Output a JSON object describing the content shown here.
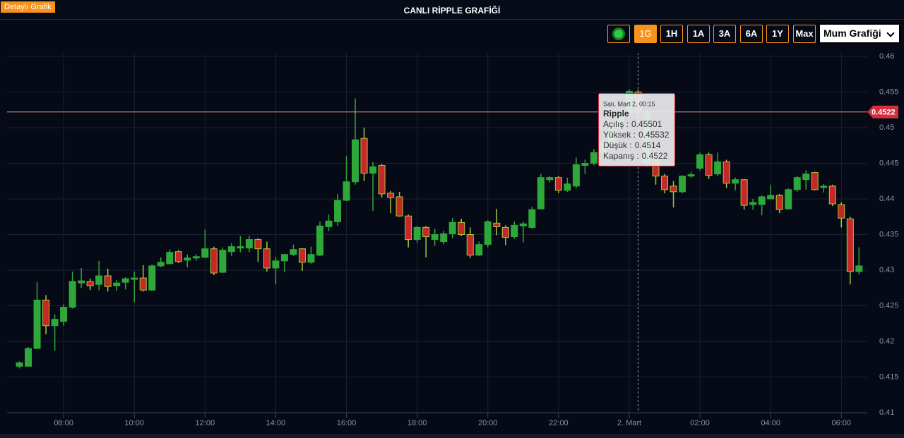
{
  "header": {
    "badge": "Detaylı Grafik",
    "title": "CANLI RİPPLE GRAFİĞİ"
  },
  "controls": {
    "ranges": [
      "1G",
      "1H",
      "1A",
      "3A",
      "6A",
      "1Y",
      "Max"
    ],
    "active": "1G",
    "chart_type": "Mum Grafiği"
  },
  "chart_data": {
    "type": "candlestick",
    "x": [
      405,
      420,
      435,
      450,
      465,
      480,
      495,
      510,
      525,
      540,
      555,
      570,
      585,
      600,
      615,
      630,
      645,
      660,
      675,
      690,
      705,
      720,
      735,
      750,
      765,
      780,
      795,
      810,
      825,
      840,
      855,
      870,
      885,
      900,
      915,
      930,
      945,
      960,
      975,
      990,
      1005,
      1020,
      1035,
      1050,
      1065,
      1080,
      1095,
      1110,
      1125,
      1140,
      1155,
      1170,
      1185,
      1200,
      1215,
      1230,
      1245,
      1260,
      1275,
      1290,
      1305,
      1320,
      1335,
      1350,
      1365,
      1380,
      1395,
      1410,
      1425,
      1440,
      1455,
      1470,
      1485,
      1500,
      1515,
      1530,
      1545,
      1560,
      1575,
      1590,
      1605,
      1620,
      1635,
      1650,
      1665,
      1680,
      1695,
      1710,
      1725,
      1740,
      1755,
      1770,
      1785,
      1800,
      1815,
      1830
    ],
    "series": [
      {
        "name": "Ripple",
        "up_color": "#2fa83a",
        "down_color": "#c62828",
        "down_border": "#a6c93a",
        "open": [
          0.4165,
          0.4165,
          0.419,
          0.4258,
          0.4222,
          0.4228,
          0.4248,
          0.4282,
          0.4284,
          0.428,
          0.4292,
          0.4278,
          0.4283,
          0.4287,
          0.4289,
          0.4272,
          0.4306,
          0.4309,
          0.4326,
          0.4314,
          0.4317,
          0.4318,
          0.433,
          0.4297,
          0.4326,
          0.4331,
          0.4331,
          0.4343,
          0.433,
          0.4303,
          0.4313,
          0.4322,
          0.433,
          0.4311,
          0.4321,
          0.4361,
          0.4368,
          0.4398,
          0.4424,
          0.4485,
          0.4436,
          0.4447,
          0.4408,
          0.4403,
          0.4376,
          0.4343,
          0.436,
          0.4343,
          0.434,
          0.4351,
          0.4367,
          0.435,
          0.4321,
          0.4336,
          0.4366,
          0.436,
          0.4347,
          0.4362,
          0.436,
          0.4386,
          0.4427,
          0.443,
          0.4412,
          0.4418,
          0.4447,
          0.445,
          0.4465,
          0.448,
          0.45,
          0.452,
          0.45501,
          0.445,
          0.4465,
          0.4432,
          0.4418,
          0.441,
          0.4432,
          0.4443,
          0.4462,
          0.4435,
          0.4452,
          0.4422,
          0.4427,
          0.4392,
          0.4392,
          0.44,
          0.4405,
          0.4386,
          0.4413,
          0.4427,
          0.4437,
          0.4416,
          0.4418,
          0.4392,
          0.4372,
          0.4298
        ],
        "high": [
          0.4172,
          0.4192,
          0.4283,
          0.4265,
          0.4238,
          0.4252,
          0.4298,
          0.4303,
          0.4288,
          0.4313,
          0.4302,
          0.4286,
          0.429,
          0.4298,
          0.4307,
          0.4308,
          0.4318,
          0.4329,
          0.4328,
          0.4322,
          0.4322,
          0.4357,
          0.4333,
          0.4332,
          0.4338,
          0.4348,
          0.4348,
          0.4345,
          0.434,
          0.4318,
          0.4323,
          0.4336,
          0.4331,
          0.4333,
          0.4368,
          0.4378,
          0.4407,
          0.446,
          0.4541,
          0.45,
          0.4452,
          0.4449,
          0.4411,
          0.441,
          0.4378,
          0.4362,
          0.4362,
          0.4358,
          0.4355,
          0.4373,
          0.4372,
          0.436,
          0.434,
          0.437,
          0.4386,
          0.4363,
          0.4368,
          0.4368,
          0.4389,
          0.4435,
          0.4432,
          0.4432,
          0.443,
          0.4458,
          0.4455,
          0.447,
          0.4485,
          0.4505,
          0.4525,
          0.4554,
          0.45532,
          0.4525,
          0.447,
          0.4435,
          0.4425,
          0.4433,
          0.4438,
          0.4465,
          0.4465,
          0.4465,
          0.4455,
          0.443,
          0.4428,
          0.44,
          0.4405,
          0.442,
          0.4407,
          0.4415,
          0.4432,
          0.444,
          0.4438,
          0.4421,
          0.442,
          0.4395,
          0.4375,
          0.4332
        ],
        "low": [
          0.4162,
          0.4165,
          0.419,
          0.421,
          0.4187,
          0.4222,
          0.4246,
          0.4275,
          0.4272,
          0.4272,
          0.427,
          0.4271,
          0.4273,
          0.4255,
          0.427,
          0.4271,
          0.4304,
          0.4308,
          0.431,
          0.4304,
          0.4313,
          0.4317,
          0.4293,
          0.4296,
          0.432,
          0.4325,
          0.4325,
          0.4312,
          0.4298,
          0.428,
          0.4297,
          0.432,
          0.4299,
          0.4309,
          0.432,
          0.4355,
          0.4362,
          0.4397,
          0.442,
          0.4425,
          0.4383,
          0.4402,
          0.438,
          0.4375,
          0.4332,
          0.4338,
          0.4318,
          0.4334,
          0.4336,
          0.4345,
          0.4348,
          0.4317,
          0.432,
          0.4332,
          0.4349,
          0.4335,
          0.4344,
          0.4339,
          0.4358,
          0.4385,
          0.4423,
          0.4408,
          0.441,
          0.4415,
          0.4435,
          0.4447,
          0.4462,
          0.4478,
          0.4498,
          0.4518,
          0.4514,
          0.4445,
          0.442,
          0.4408,
          0.4388,
          0.4408,
          0.443,
          0.444,
          0.4428,
          0.4432,
          0.4415,
          0.4412,
          0.4385,
          0.4385,
          0.4377,
          0.44,
          0.438,
          0.4385,
          0.441,
          0.4413,
          0.4412,
          0.4409,
          0.439,
          0.436,
          0.428,
          0.4294
        ],
        "close": [
          0.417,
          0.419,
          0.4258,
          0.4222,
          0.4231,
          0.4248,
          0.4284,
          0.4285,
          0.4278,
          0.4292,
          0.4277,
          0.4282,
          0.4288,
          0.4289,
          0.4272,
          0.4306,
          0.4311,
          0.4325,
          0.4312,
          0.4317,
          0.4319,
          0.433,
          0.4296,
          0.4328,
          0.4333,
          0.4333,
          0.4343,
          0.433,
          0.4303,
          0.4313,
          0.4322,
          0.4329,
          0.4311,
          0.4322,
          0.4362,
          0.4369,
          0.4398,
          0.4424,
          0.4483,
          0.4436,
          0.4445,
          0.4407,
          0.4402,
          0.4376,
          0.4343,
          0.436,
          0.4347,
          0.435,
          0.4351,
          0.4367,
          0.435,
          0.4321,
          0.4336,
          0.4368,
          0.4361,
          0.4346,
          0.4363,
          0.4365,
          0.4385,
          0.443,
          0.443,
          0.4412,
          0.4421,
          0.4448,
          0.445,
          0.4465,
          0.448,
          0.45,
          0.452,
          0.4551,
          0.4522,
          0.452,
          0.4432,
          0.4413,
          0.441,
          0.4432,
          0.4434,
          0.4462,
          0.4433,
          0.4452,
          0.4422,
          0.4427,
          0.4391,
          0.4395,
          0.4403,
          0.4405,
          0.4385,
          0.4413,
          0.443,
          0.4435,
          0.4413,
          0.4418,
          0.4393,
          0.4373,
          0.4298,
          0.4306
        ]
      }
    ],
    "xlim": [
      384,
      1844
    ],
    "ylim": [
      0.41,
      0.46
    ],
    "yticks": [
      0.41,
      0.415,
      0.42,
      0.425,
      0.43,
      0.435,
      0.44,
      0.445,
      0.45,
      0.455,
      0.46
    ],
    "xticks": [
      {
        "value": 480,
        "label": "08:00"
      },
      {
        "value": 600,
        "label": "10:00"
      },
      {
        "value": 720,
        "label": "12:00"
      },
      {
        "value": 840,
        "label": "14:00"
      },
      {
        "value": 960,
        "label": "16:00"
      },
      {
        "value": 1080,
        "label": "18:00"
      },
      {
        "value": 1200,
        "label": "20:00"
      },
      {
        "value": 1320,
        "label": "22:00"
      },
      {
        "value": 1440,
        "label": "2. Mart"
      },
      {
        "value": 1560,
        "label": "02:00"
      },
      {
        "value": 1680,
        "label": "04:00"
      },
      {
        "value": 1800,
        "label": "06:00"
      }
    ],
    "grid": true,
    "last_price": 0.4522,
    "tooltip": {
      "index": 70,
      "date": "Salı, Mart 2, 00:15",
      "labels": [
        "Açılış :",
        "Yüksek :",
        "Düşük :",
        "Kapanış :"
      ]
    }
  }
}
